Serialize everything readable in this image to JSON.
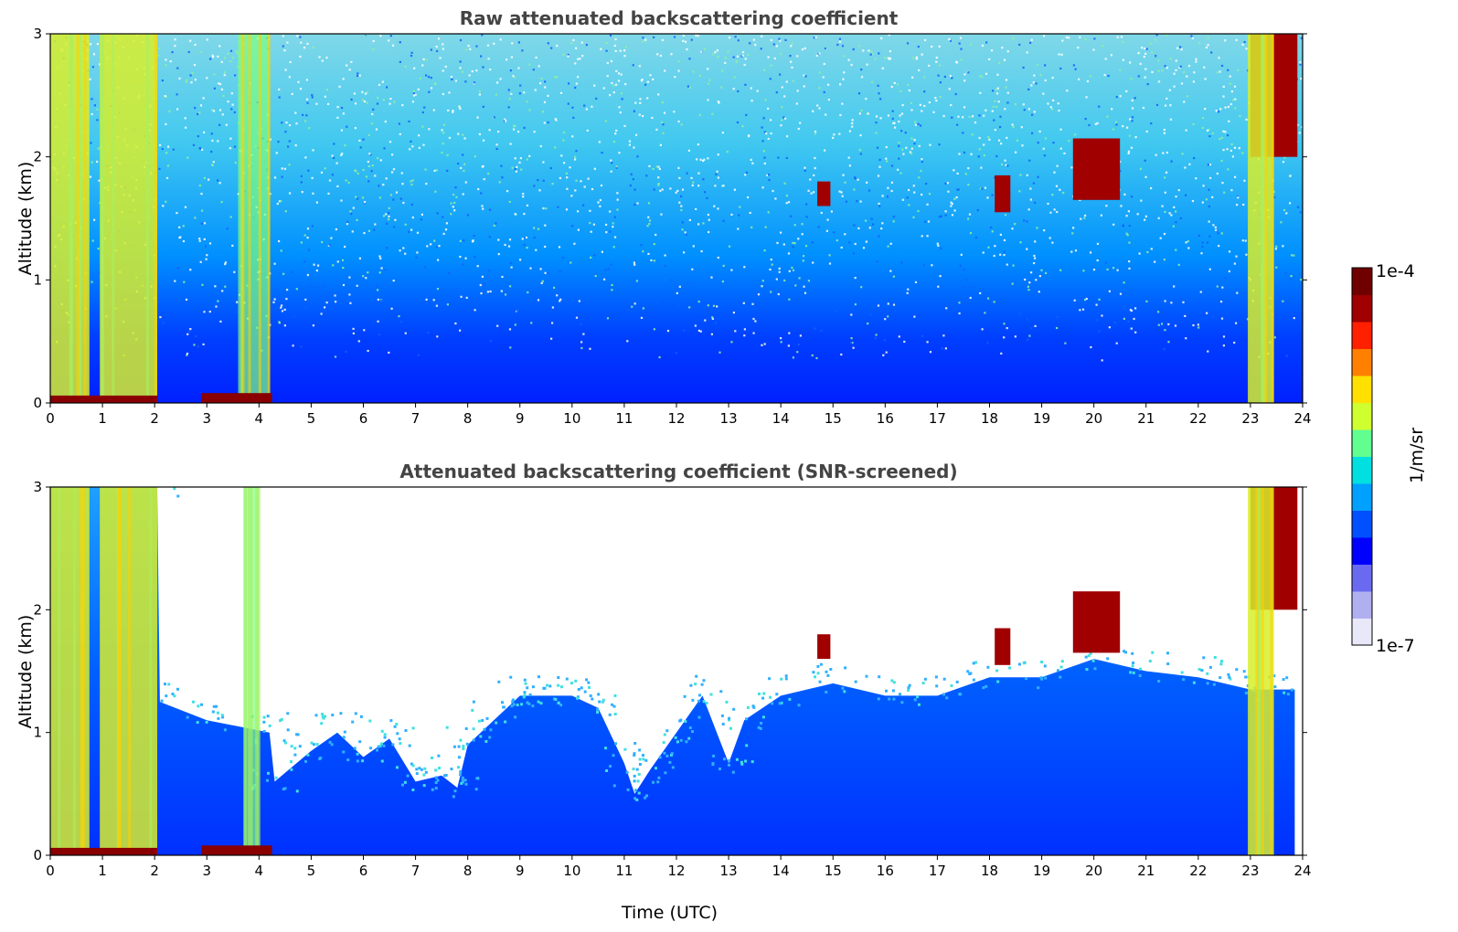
{
  "chart_data": [
    {
      "type": "heatmap",
      "title": "Raw attenuated backscattering coefficient",
      "xlabel": "",
      "ylabel": "Altitude (km)",
      "xlim": [
        0,
        24
      ],
      "ylim": [
        0,
        3
      ],
      "xticks": [
        0,
        1,
        2,
        3,
        4,
        5,
        6,
        7,
        8,
        9,
        10,
        11,
        12,
        13,
        14,
        15,
        16,
        17,
        18,
        19,
        20,
        21,
        22,
        23,
        24
      ],
      "yticks": [
        0,
        1,
        2,
        3
      ],
      "screened": false,
      "features": [
        {
          "kind": "aerosol_column",
          "x_start": 0.0,
          "x_end": 0.75,
          "alt_top": 3.0,
          "level": "high"
        },
        {
          "kind": "aerosol_column",
          "x_start": 0.95,
          "x_end": 2.05,
          "alt_top": 3.0,
          "level": "high"
        },
        {
          "kind": "aerosol_column",
          "x_start": 3.6,
          "x_end": 4.2,
          "alt_top": 3.0,
          "level": "medium"
        },
        {
          "kind": "surface_layer",
          "x_start": 0.0,
          "x_end": 2.05,
          "alt_top": 0.06,
          "level": "max"
        },
        {
          "kind": "surface_layer",
          "x_start": 2.9,
          "x_end": 4.25,
          "alt_top": 0.08,
          "level": "max"
        },
        {
          "kind": "cloud",
          "x_start": 14.7,
          "x_end": 14.95,
          "alt_bottom": 1.6,
          "alt_top": 1.8,
          "level": "max"
        },
        {
          "kind": "cloud",
          "x_start": 18.1,
          "x_end": 18.4,
          "alt_bottom": 1.55,
          "alt_top": 1.85,
          "level": "max"
        },
        {
          "kind": "cloud",
          "x_start": 19.6,
          "x_end": 20.5,
          "alt_bottom": 1.65,
          "alt_top": 2.15,
          "level": "max"
        },
        {
          "kind": "cloud",
          "x_start": 23.0,
          "x_end": 23.9,
          "alt_bottom": 2.0,
          "alt_top": 3.0,
          "level": "max"
        },
        {
          "kind": "aerosol_column",
          "x_start": 22.95,
          "x_end": 23.45,
          "alt_top": 3.0,
          "level": "high"
        }
      ]
    },
    {
      "type": "heatmap",
      "title": "Attenuated backscattering coefficient (SNR-screened)",
      "xlabel": "Time (UTC)",
      "ylabel": "Altitude (km)",
      "xlim": [
        0,
        24
      ],
      "ylim": [
        0,
        3
      ],
      "xticks": [
        0,
        1,
        2,
        3,
        4,
        5,
        6,
        7,
        8,
        9,
        10,
        11,
        12,
        13,
        14,
        15,
        16,
        17,
        18,
        19,
        20,
        21,
        22,
        23,
        24
      ],
      "yticks": [
        0,
        1,
        2,
        3
      ],
      "screened": true,
      "boundary_layer_top_km": [
        [
          0,
          3.0
        ],
        [
          2.05,
          3.0
        ],
        [
          2.1,
          1.25
        ],
        [
          3,
          1.1
        ],
        [
          4.2,
          1.0
        ],
        [
          4.3,
          0.6
        ],
        [
          5,
          0.85
        ],
        [
          5.5,
          1.0
        ],
        [
          6,
          0.8
        ],
        [
          6.5,
          0.95
        ],
        [
          7,
          0.6
        ],
        [
          7.5,
          0.65
        ],
        [
          7.8,
          0.55
        ],
        [
          8,
          0.9
        ],
        [
          8.5,
          1.1
        ],
        [
          9,
          1.3
        ],
        [
          9.5,
          1.3
        ],
        [
          10,
          1.3
        ],
        [
          10.5,
          1.2
        ],
        [
          11,
          0.75
        ],
        [
          11.2,
          0.5
        ],
        [
          11.5,
          0.7
        ],
        [
          12,
          1.0
        ],
        [
          12.5,
          1.3
        ],
        [
          13,
          0.75
        ],
        [
          13.3,
          1.1
        ],
        [
          14,
          1.3
        ],
        [
          15,
          1.4
        ],
        [
          16,
          1.3
        ],
        [
          17,
          1.3
        ],
        [
          18,
          1.45
        ],
        [
          19,
          1.45
        ],
        [
          20,
          1.6
        ],
        [
          21,
          1.5
        ],
        [
          22,
          1.45
        ],
        [
          23,
          1.35
        ],
        [
          23.85,
          1.35
        ],
        [
          23.85,
          0
        ]
      ],
      "features": [
        {
          "kind": "aerosol_column",
          "x_start": 0.0,
          "x_end": 0.75,
          "alt_top": 3.0,
          "level": "high"
        },
        {
          "kind": "aerosol_column",
          "x_start": 0.95,
          "x_end": 2.05,
          "alt_top": 3.0,
          "level": "high"
        },
        {
          "kind": "aerosol_column",
          "x_start": 3.7,
          "x_end": 4.0,
          "alt_top": 3.0,
          "level": "medium"
        },
        {
          "kind": "surface_layer",
          "x_start": 0.0,
          "x_end": 2.05,
          "alt_top": 0.06,
          "level": "max"
        },
        {
          "kind": "surface_layer",
          "x_start": 2.9,
          "x_end": 4.25,
          "alt_top": 0.08,
          "level": "max"
        },
        {
          "kind": "cloud",
          "x_start": 14.7,
          "x_end": 14.95,
          "alt_bottom": 1.6,
          "alt_top": 1.8,
          "level": "max"
        },
        {
          "kind": "cloud",
          "x_start": 18.1,
          "x_end": 18.4,
          "alt_bottom": 1.55,
          "alt_top": 1.85,
          "level": "max"
        },
        {
          "kind": "cloud",
          "x_start": 19.6,
          "x_end": 20.5,
          "alt_bottom": 1.65,
          "alt_top": 2.15,
          "level": "max"
        },
        {
          "kind": "cloud",
          "x_start": 23.0,
          "x_end": 23.9,
          "alt_bottom": 2.0,
          "alt_top": 3.0,
          "level": "max"
        },
        {
          "kind": "aerosol_column",
          "x_start": 22.95,
          "x_end": 23.45,
          "alt_top": 3.0,
          "level": "high"
        }
      ]
    }
  ],
  "colorbar": {
    "label": "1/m/sr",
    "min_label": "1e-7",
    "max_label": "1e-4",
    "scale": "log",
    "colormap": [
      "#e8e8f8",
      "#b0b0f0",
      "#6a6af0",
      "#0000ff",
      "#0050ff",
      "#00a0ff",
      "#00e0e0",
      "#60ff90",
      "#d0ff30",
      "#ffe000",
      "#ff8000",
      "#ff2000",
      "#a00000",
      "#700000"
    ]
  }
}
